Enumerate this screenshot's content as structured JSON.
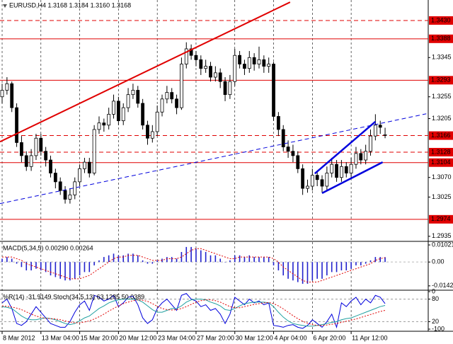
{
  "chart_data": [
    {
      "type": "candlestick",
      "title": "EURUSD,H4 1.3168 1.3184 1.3160 1.3168",
      "categories": [
        "8 Mar 2012",
        null,
        null,
        null,
        null,
        null,
        null,
        null,
        "13 Mar 04:00",
        null,
        null,
        null,
        null,
        null,
        null,
        null,
        "15 Mar 20:00",
        null,
        null,
        null,
        null,
        null,
        null,
        null,
        "20 Mar 12:00",
        null,
        null,
        null,
        null,
        null,
        null,
        null,
        "23 Mar 04:00",
        null,
        null,
        null,
        null,
        null,
        null,
        null,
        "27 Mar 20:00",
        null,
        null,
        null,
        null,
        null,
        null,
        null,
        "30 Mar 12:00",
        null,
        null,
        null,
        null,
        null,
        null,
        null,
        "4 Apr 04:00",
        null,
        null,
        null,
        null,
        null,
        null,
        null,
        "6 Apr 20:00",
        null,
        null,
        null,
        null,
        null,
        null,
        null,
        "11 Apr 12:00",
        null,
        null,
        null,
        null,
        null,
        null,
        null
      ],
      "candles": [
        [
          1.3255,
          1.3285,
          1.324,
          1.327
        ],
        [
          1.327,
          1.33,
          1.326,
          1.3285
        ],
        [
          1.3285,
          1.329,
          1.322,
          1.323
        ],
        [
          1.323,
          1.324,
          1.314,
          1.315
        ],
        [
          1.315,
          1.3165,
          1.3105,
          1.312
        ],
        [
          1.312,
          1.313,
          1.3085,
          1.3095
        ],
        [
          1.3095,
          1.3135,
          1.3085,
          1.312
        ],
        [
          1.312,
          1.317,
          1.311,
          1.316
        ],
        [
          1.316,
          1.317,
          1.312,
          1.313
        ],
        [
          1.313,
          1.314,
          1.3095,
          1.311
        ],
        [
          1.311,
          1.312,
          1.307,
          1.308
        ],
        [
          1.308,
          1.309,
          1.3045,
          1.306
        ],
        [
          1.306,
          1.307,
          1.303,
          1.304
        ],
        [
          1.304,
          1.305,
          1.301,
          1.302
        ],
        [
          1.302,
          1.3045,
          1.301,
          1.303
        ],
        [
          1.303,
          1.307,
          1.302,
          1.306
        ],
        [
          1.306,
          1.31,
          1.305,
          1.309
        ],
        [
          1.309,
          1.3115,
          1.308,
          1.3105
        ],
        [
          1.3105,
          1.3115,
          1.307,
          1.308
        ],
        [
          1.308,
          1.319,
          1.3075,
          1.318
        ],
        [
          1.318,
          1.321,
          1.317,
          1.3195
        ],
        [
          1.3195,
          1.3205,
          1.3175,
          1.319
        ],
        [
          1.319,
          1.323,
          1.318,
          1.3215
        ],
        [
          1.3215,
          1.326,
          1.3205,
          1.3245
        ],
        [
          1.3245,
          1.3255,
          1.319,
          1.32
        ],
        [
          1.32,
          1.324,
          1.319,
          1.323
        ],
        [
          1.323,
          1.3275,
          1.322,
          1.326
        ],
        [
          1.326,
          1.3285,
          1.325,
          1.327
        ],
        [
          1.327,
          1.328,
          1.323,
          1.324
        ],
        [
          1.324,
          1.325,
          1.318,
          1.319
        ],
        [
          1.319,
          1.32,
          1.3145,
          1.316
        ],
        [
          1.316,
          1.319,
          1.315,
          1.3175
        ],
        [
          1.3175,
          1.3235,
          1.3165,
          1.322
        ],
        [
          1.322,
          1.326,
          1.321,
          1.325
        ],
        [
          1.325,
          1.328,
          1.324,
          1.3265
        ],
        [
          1.3265,
          1.3275,
          1.324,
          1.325
        ],
        [
          1.325,
          1.326,
          1.3215,
          1.323
        ],
        [
          1.323,
          1.3345,
          1.3225,
          1.333
        ],
        [
          1.333,
          1.338,
          1.332,
          1.3365
        ],
        [
          1.3365,
          1.3375,
          1.334,
          1.335
        ],
        [
          1.335,
          1.336,
          1.3325,
          1.334
        ],
        [
          1.334,
          1.335,
          1.3305,
          1.332
        ],
        [
          1.332,
          1.334,
          1.331,
          1.3325
        ],
        [
          1.3325,
          1.3335,
          1.329,
          1.33
        ],
        [
          1.33,
          1.3325,
          1.329,
          1.331
        ],
        [
          1.331,
          1.332,
          1.3275,
          1.329
        ],
        [
          1.329,
          1.33,
          1.3245,
          1.326
        ],
        [
          1.326,
          1.3305,
          1.325,
          1.329
        ],
        [
          1.329,
          1.3365,
          1.328,
          1.335
        ],
        [
          1.335,
          1.336,
          1.332,
          1.333
        ],
        [
          1.333,
          1.334,
          1.3305,
          1.332
        ],
        [
          1.332,
          1.336,
          1.331,
          1.3345
        ],
        [
          1.3345,
          1.3355,
          1.3315,
          1.333
        ],
        [
          1.333,
          1.337,
          1.332,
          1.334
        ],
        [
          1.334,
          1.335,
          1.331,
          1.3325
        ],
        [
          1.3325,
          1.3345,
          1.331,
          1.333
        ],
        [
          1.333,
          1.3335,
          1.32,
          1.321
        ],
        [
          1.321,
          1.322,
          1.3165,
          1.318
        ],
        [
          1.318,
          1.319,
          1.313,
          1.314
        ],
        [
          1.314,
          1.3155,
          1.3115,
          1.313
        ],
        [
          1.313,
          1.3145,
          1.3105,
          1.312
        ],
        [
          1.312,
          1.313,
          1.308,
          1.309
        ],
        [
          1.309,
          1.31,
          1.303,
          1.3045
        ],
        [
          1.3045,
          1.3065,
          1.3035,
          1.305
        ],
        [
          1.305,
          1.309,
          1.304,
          1.3075
        ],
        [
          1.3075,
          1.3085,
          1.305,
          1.3065
        ],
        [
          1.3065,
          1.3075,
          1.3035,
          1.305
        ],
        [
          1.305,
          1.3095,
          1.304,
          1.308
        ],
        [
          1.308,
          1.3115,
          1.307,
          1.31
        ],
        [
          1.31,
          1.311,
          1.306,
          1.307
        ],
        [
          1.307,
          1.311,
          1.306,
          1.3095
        ],
        [
          1.3095,
          1.3105,
          1.307,
          1.308
        ],
        [
          1.308,
          1.3115,
          1.307,
          1.31
        ],
        [
          1.31,
          1.314,
          1.309,
          1.3125
        ],
        [
          1.3125,
          1.3135,
          1.31,
          1.311
        ],
        [
          1.311,
          1.3145,
          1.31,
          1.313
        ],
        [
          1.313,
          1.318,
          1.312,
          1.3165
        ],
        [
          1.3165,
          1.3215,
          1.3155,
          1.319
        ],
        [
          1.319,
          1.32,
          1.317,
          1.3185
        ],
        [
          1.3168,
          1.3184,
          1.316,
          1.3168
        ]
      ],
      "xlim": [
        -0.44,
        87.9
      ],
      "ylim": [
        1.2925,
        1.3477
      ],
      "yticks": [
        1.3345,
        1.3255,
        1.3205,
        {
          "value": 1.307,
          "label": "1.3070"
        },
        1.3025,
        1.2935
      ],
      "levels": [
        {
          "value": 1.343,
          "label": "1.3430",
          "style": "dashed"
        },
        {
          "value": 1.3388,
          "label": "1.3388",
          "style": "solid"
        },
        {
          "value": 1.3293,
          "label": "1.3293",
          "style": "solid"
        },
        {
          "value": 1.3166,
          "label": "1.3166",
          "style": "dashed"
        },
        {
          "value": 1.3128,
          "label": "1.3128",
          "style": "dashed"
        },
        {
          "value": 1.3104,
          "label": "1.3104",
          "style": "solid"
        },
        {
          "value": 1.2974,
          "label": "1.2974",
          "style": "solid"
        }
      ],
      "trendlines": [
        {
          "color": "#e00000",
          "style": "solid",
          "width": 2,
          "points": [
            [
              -0.44,
              1.3152
            ],
            [
              59.4,
              1.3472
            ]
          ]
        },
        {
          "color": "#0000dd",
          "style": "dashed",
          "width": 1,
          "points": [
            [
              -0.44,
              1.301
            ],
            [
              87.5,
              1.3216
            ]
          ]
        },
        {
          "color": "#0000dd",
          "style": "solid",
          "width": 2.5,
          "points": [
            [
              64.5,
              1.3079
            ],
            [
              77,
              1.3198
            ]
          ]
        },
        {
          "color": "#0000dd",
          "style": "solid",
          "width": 2.5,
          "points": [
            [
              66,
              1.3034
            ],
            [
              78.5,
              1.3105
            ]
          ]
        }
      ],
      "bull_color": "#ffffff",
      "bear_color": "#000000",
      "level_color": "#e00000",
      "grid": true
    },
    {
      "type": "macd",
      "title": "MACD(5,34,5) 0.00290 0.00264",
      "ylim": [
        -0.016,
        0.0115
      ],
      "yticks": [
        0.01021,
        {
          "value": 0,
          "label": "0.00"
        },
        -0.01425
      ],
      "series": [
        {
          "color": "#2222cc",
          "style": "histogram",
          "values": [
            0.002,
            0.003,
            0.002,
            -0.001,
            -0.003,
            -0.005,
            -0.005,
            -0.004,
            -0.005,
            -0.006,
            -0.008,
            -0.009,
            -0.01,
            -0.011,
            -0.011,
            -0.01,
            -0.008,
            -0.006,
            -0.006,
            -0.002,
            0.001,
            0.003,
            0.004,
            0.005,
            0.004,
            0.004,
            0.005,
            0.005,
            0.004,
            0.001,
            -0.001,
            -0.001,
            0.001,
            0.002,
            0.003,
            0.003,
            0.002,
            0.006,
            0.009,
            0.009,
            0.008,
            0.007,
            0.006,
            0.004,
            0.004,
            0.002,
            0.0,
            0.001,
            0.004,
            0.004,
            0.003,
            0.004,
            0.003,
            0.003,
            0.003,
            0.003,
            -0.002,
            -0.005,
            -0.008,
            -0.01,
            -0.011,
            -0.012,
            -0.013,
            -0.013,
            -0.011,
            -0.01,
            -0.01,
            -0.008,
            -0.006,
            -0.006,
            -0.005,
            -0.005,
            -0.004,
            -0.002,
            -0.002,
            -0.001,
            0.001,
            0.003,
            0.003,
            0.0029
          ]
        },
        {
          "color": "#e00000",
          "style": "dotted",
          "values": [
            0.003,
            0.003,
            0.003,
            0.002,
            0.001,
            -0.001,
            -0.002,
            -0.003,
            -0.004,
            -0.005,
            -0.006,
            -0.007,
            -0.008,
            -0.009,
            -0.01,
            -0.01,
            -0.01,
            -0.009,
            -0.008,
            -0.006,
            -0.004,
            -0.002,
            0.0,
            0.002,
            0.003,
            0.003,
            0.004,
            0.004,
            0.004,
            0.003,
            0.002,
            0.001,
            0.001,
            0.001,
            0.002,
            0.002,
            0.002,
            0.003,
            0.005,
            0.007,
            0.008,
            0.008,
            0.007,
            0.006,
            0.005,
            0.004,
            0.003,
            0.002,
            0.002,
            0.003,
            0.003,
            0.003,
            0.003,
            0.003,
            0.003,
            0.003,
            0.002,
            0.0,
            -0.003,
            -0.005,
            -0.007,
            -0.009,
            -0.011,
            -0.012,
            -0.012,
            -0.012,
            -0.011,
            -0.01,
            -0.009,
            -0.008,
            -0.007,
            -0.006,
            -0.005,
            -0.004,
            -0.003,
            -0.002,
            -0.001,
            0.001,
            0.002,
            0.00264
          ]
        }
      ]
    },
    {
      "type": "oscillator",
      "title": "%R(14) -31.9149 Stoch(34,5,13) 63.1285 50.0389",
      "ylim": [
        0,
        100
      ],
      "yticks": [
        80,
        20
      ],
      "y2lim": [
        -100,
        0
      ],
      "y2ticks": [
        0,
        -100
      ],
      "series": [
        {
          "color": "#0000dd",
          "style": "solid",
          "axis": "y2",
          "values": [
            -30,
            -20,
            -45,
            -85,
            -90,
            -80,
            -60,
            -40,
            -55,
            -70,
            -85,
            -90,
            -95,
            -95,
            -80,
            -55,
            -35,
            -25,
            -50,
            -10,
            -15,
            -25,
            -20,
            -10,
            -40,
            -30,
            -15,
            -12,
            -35,
            -70,
            -85,
            -75,
            -45,
            -30,
            -20,
            -35,
            -50,
            -10,
            -5,
            -20,
            -25,
            -40,
            -35,
            -50,
            -45,
            -60,
            -85,
            -60,
            -15,
            -25,
            -35,
            -20,
            -30,
            -25,
            -35,
            -30,
            -90,
            -92,
            -95,
            -90,
            -88,
            -95,
            -98,
            -90,
            -75,
            -85,
            -95,
            -80,
            -60,
            -95,
            -30,
            -40,
            -25,
            -15,
            -35,
            -20,
            -30,
            -10,
            -15,
            -31.9149
          ]
        },
        {
          "color": "#20a0a0",
          "style": "solid",
          "values": [
            60,
            58,
            55,
            45,
            35,
            28,
            25,
            25,
            28,
            30,
            28,
            25,
            20,
            15,
            12,
            15,
            22,
            30,
            35,
            45,
            55,
            62,
            70,
            75,
            78,
            80,
            80,
            80,
            78,
            72,
            62,
            52,
            45,
            45,
            50,
            55,
            55,
            62,
            72,
            78,
            80,
            80,
            78,
            72,
            68,
            62,
            52,
            50,
            55,
            62,
            68,
            70,
            72,
            72,
            72,
            70,
            60,
            45,
            32,
            22,
            15,
            12,
            10,
            8,
            8,
            10,
            12,
            15,
            18,
            20,
            25,
            28,
            30,
            35,
            40,
            45,
            50,
            55,
            60,
            63.1285
          ]
        },
        {
          "color": "#e00000",
          "style": "dotted",
          "values": [
            62,
            61,
            59,
            56,
            52,
            46,
            40,
            35,
            31,
            29,
            28,
            27,
            25,
            22,
            19,
            17,
            17,
            19,
            22,
            27,
            33,
            40,
            48,
            55,
            62,
            68,
            72,
            76,
            78,
            77,
            74,
            68,
            61,
            55,
            52,
            51,
            52,
            55,
            60,
            66,
            72,
            76,
            78,
            78,
            76,
            72,
            66,
            60,
            57,
            57,
            60,
            63,
            66,
            68,
            70,
            71,
            68,
            62,
            54,
            45,
            36,
            28,
            21,
            16,
            12,
            10,
            10,
            11,
            13,
            15,
            18,
            21,
            24,
            27,
            31,
            35,
            39,
            43,
            47,
            50.0389
          ]
        }
      ]
    }
  ]
}
